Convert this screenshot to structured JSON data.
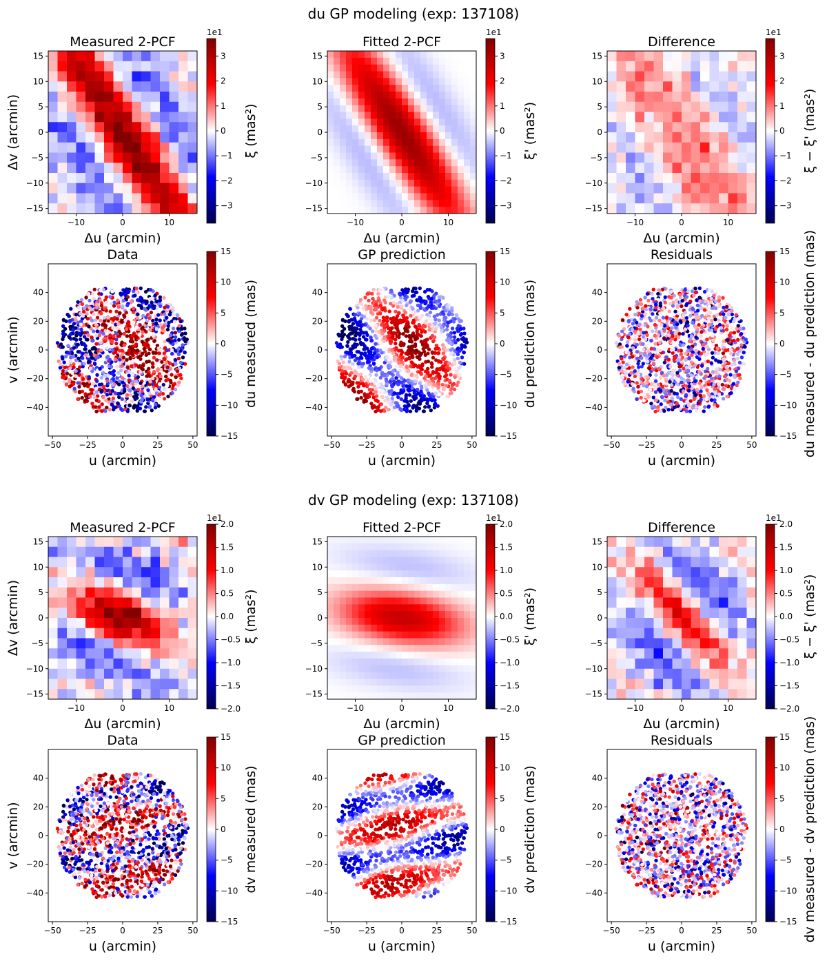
{
  "figure": {
    "du_title": "du GP modeling (exp: 137108)",
    "dv_title": "dv GP modeling (exp: 137108)",
    "offset_text": "1e1"
  },
  "colors": {
    "cmap_low": "#00004d",
    "cmap_mid_low": "#0000ff",
    "cmap_mid": "#ffffff",
    "cmap_mid_high": "#ff0000",
    "cmap_high": "#800000"
  },
  "chart_data": [
    {
      "id": "du-measured-2pcf",
      "type": "heatmap",
      "title": "Measured 2-PCF",
      "xlabel": "Δu (arcmin)",
      "ylabel": "Δv (arcmin)",
      "cbar_label": "ξ (mas²)",
      "xlim": [
        -16,
        16
      ],
      "ylim": [
        -16,
        16
      ],
      "xticks": [
        -10,
        0,
        10
      ],
      "yticks": [
        -15,
        -10,
        -5,
        0,
        5,
        10,
        15
      ],
      "cbar_range": [
        -3.7,
        3.7
      ],
      "cbar_ticks": [
        -3,
        -2,
        -1,
        0,
        1,
        2,
        3
      ],
      "cbar_offset": "1e1",
      "grid_size": 16,
      "model": {
        "kind": "stripe",
        "amp": 3.6,
        "sigma_along": 22,
        "sigma_across": 3.2,
        "angle_deg": -55,
        "neg_amp": 1.1,
        "neg_offset": 10
      },
      "noise": 0.35
    },
    {
      "id": "du-fitted-2pcf",
      "type": "heatmap",
      "title": "Fitted 2-PCF",
      "xlabel": "Δu (arcmin)",
      "ylabel": "",
      "cbar_label": "ξ' (mas²)",
      "xlim": [
        -16,
        16
      ],
      "ylim": [
        -16,
        16
      ],
      "xticks": [
        -10,
        0,
        10
      ],
      "yticks": [
        -15,
        -10,
        -5,
        0,
        5,
        10,
        15
      ],
      "cbar_range": [
        -3.7,
        3.7
      ],
      "cbar_ticks": [
        -3,
        -2,
        -1,
        0,
        1,
        2,
        3
      ],
      "cbar_offset": "1e1",
      "grid_size": 24,
      "model": {
        "kind": "stripe",
        "amp": 3.3,
        "sigma_along": 16,
        "sigma_across": 3.4,
        "angle_deg": -55,
        "neg_amp": 0.55,
        "neg_offset": 9
      },
      "noise": 0
    },
    {
      "id": "du-difference",
      "type": "heatmap",
      "title": "Difference",
      "xlabel": "Δu (arcmin)",
      "ylabel": "",
      "cbar_label": "ξ − ξ' (mas²)",
      "xlim": [
        -16,
        16
      ],
      "ylim": [
        -16,
        16
      ],
      "xticks": [
        -10,
        0,
        10
      ],
      "yticks": [
        -15,
        -10,
        -5,
        0,
        5,
        10,
        15
      ],
      "cbar_range": [
        -3.7,
        3.7
      ],
      "cbar_ticks": [
        -3,
        -2,
        -1,
        0,
        1,
        2,
        3
      ],
      "cbar_offset": "1e1",
      "grid_size": 16,
      "model": {
        "kind": "stripe",
        "amp": 1.0,
        "sigma_along": 30,
        "sigma_across": 5,
        "angle_deg": -55,
        "neg_amp": 0.5,
        "neg_offset": 11
      },
      "noise": 0.3
    },
    {
      "id": "du-data",
      "type": "scatter",
      "title": "Data",
      "xlabel": "u (arcmin)",
      "ylabel": "v (arcmin)",
      "cbar_label": "du measured (mas)",
      "xlim": [
        -53,
        53
      ],
      "ylim": [
        -60,
        60
      ],
      "xticks": [
        -50,
        -25,
        0,
        25,
        50
      ],
      "yticks": [
        -40,
        -20,
        0,
        20,
        40
      ],
      "cbar_range": [
        -15,
        15
      ],
      "cbar_ticks": [
        -15,
        -10,
        -5,
        0,
        5,
        10,
        15
      ],
      "n_points": 1300,
      "field_radius": 47,
      "vertical_extent": 43,
      "seed": 7,
      "field": {
        "kind": "du",
        "scale": 9,
        "noise": 7
      }
    },
    {
      "id": "du-gp-prediction",
      "type": "scatter",
      "title": "GP prediction",
      "xlabel": "u (arcmin)",
      "ylabel": "",
      "cbar_label": "du prediction (mas)",
      "xlim": [
        -53,
        53
      ],
      "ylim": [
        -60,
        60
      ],
      "xticks": [
        -50,
        -25,
        0,
        25,
        50
      ],
      "yticks": [
        -40,
        -20,
        0,
        20,
        40
      ],
      "cbar_range": [
        -15,
        15
      ],
      "cbar_ticks": [
        -15,
        -10,
        -5,
        0,
        5,
        10,
        15
      ],
      "n_points": 1300,
      "field_radius": 47,
      "vertical_extent": 43,
      "seed": 7,
      "field": {
        "kind": "du",
        "scale": 10,
        "noise": 0.8
      }
    },
    {
      "id": "du-residuals",
      "type": "scatter",
      "title": "Residuals",
      "xlabel": "u (arcmin)",
      "ylabel": "",
      "cbar_label": "du measured - du prediction (mas)",
      "xlim": [
        -53,
        53
      ],
      "ylim": [
        -60,
        60
      ],
      "xticks": [
        -50,
        -25,
        0,
        25,
        50
      ],
      "yticks": [
        -40,
        -20,
        0,
        20,
        40
      ],
      "cbar_range": [
        -15,
        15
      ],
      "cbar_ticks": [
        -15,
        -10,
        -5,
        0,
        5,
        10,
        15
      ],
      "n_points": 1300,
      "field_radius": 47,
      "vertical_extent": 43,
      "seed": 7,
      "field": {
        "kind": "noise",
        "scale": 0,
        "noise": 6
      }
    },
    {
      "id": "dv-measured-2pcf",
      "type": "heatmap",
      "title": "Measured 2-PCF",
      "xlabel": "Δu (arcmin)",
      "ylabel": "Δv (arcmin)",
      "cbar_label": "ξ (mas²)",
      "xlim": [
        -16,
        16
      ],
      "ylim": [
        -16,
        16
      ],
      "xticks": [
        -10,
        0,
        10
      ],
      "yticks": [
        -15,
        -10,
        -5,
        0,
        5,
        10,
        15
      ],
      "cbar_range": [
        -2.0,
        2.0
      ],
      "cbar_ticks": [
        -2.0,
        -1.5,
        -1.0,
        -0.5,
        0.0,
        0.5,
        1.0,
        1.5,
        2.0
      ],
      "cbar_offset": "1e1",
      "grid_size": 16,
      "model": {
        "kind": "stripe",
        "amp": 1.9,
        "sigma_along": 7,
        "sigma_across": 3.2,
        "angle_deg": -22,
        "neg_amp": 0.7,
        "neg_offset": 9
      },
      "noise": 0.22
    },
    {
      "id": "dv-fitted-2pcf",
      "type": "heatmap",
      "title": "Fitted 2-PCF",
      "xlabel": "Δu (arcmin)",
      "ylabel": "",
      "cbar_label": "ξ' (mas²)",
      "xlim": [
        -16,
        16
      ],
      "ylim": [
        -16,
        16
      ],
      "xticks": [
        -10,
        0,
        10
      ],
      "yticks": [
        -15,
        -10,
        -5,
        0,
        5,
        10,
        15
      ],
      "cbar_range": [
        -2.0,
        2.0
      ],
      "cbar_ticks": [
        -2.0,
        -1.5,
        -1.0,
        -0.5,
        0.0,
        0.5,
        1.0,
        1.5,
        2.0
      ],
      "cbar_offset": "1e1",
      "grid_size": 24,
      "model": {
        "kind": "stripe",
        "amp": 1.45,
        "sigma_along": 9,
        "sigma_across": 3.4,
        "angle_deg": -8,
        "neg_amp": 0.25,
        "neg_offset": 10
      },
      "noise": 0
    },
    {
      "id": "dv-difference",
      "type": "heatmap",
      "title": "Difference",
      "xlabel": "Δu (arcmin)",
      "ylabel": "",
      "cbar_label": "ξ − ξ' (mas²)",
      "xlim": [
        -16,
        16
      ],
      "ylim": [
        -16,
        16
      ],
      "xticks": [
        -10,
        0,
        10
      ],
      "yticks": [
        -15,
        -10,
        -5,
        0,
        5,
        10,
        15
      ],
      "cbar_range": [
        -2.0,
        2.0
      ],
      "cbar_ticks": [
        -2.0,
        -1.5,
        -1.0,
        -0.5,
        0.0,
        0.5,
        1.0,
        1.5,
        2.0
      ],
      "cbar_offset": "1e1",
      "grid_size": 16,
      "model": {
        "kind": "stripe",
        "amp": 1.1,
        "sigma_along": 10,
        "sigma_across": 2.6,
        "angle_deg": -45,
        "neg_amp": 0.6,
        "neg_offset": 8
      },
      "noise": 0.18
    },
    {
      "id": "dv-data",
      "type": "scatter",
      "title": "Data",
      "xlabel": "u (arcmin)",
      "ylabel": "v (arcmin)",
      "cbar_label": "dv measured (mas)",
      "xlim": [
        -53,
        53
      ],
      "ylim": [
        -60,
        60
      ],
      "xticks": [
        -50,
        -25,
        0,
        25,
        50
      ],
      "yticks": [
        -40,
        -20,
        0,
        20,
        40
      ],
      "cbar_range": [
        -15,
        15
      ],
      "cbar_ticks": [
        -15,
        -10,
        -5,
        0,
        5,
        10,
        15
      ],
      "n_points": 1300,
      "field_radius": 47,
      "vertical_extent": 43,
      "seed": 7,
      "field": {
        "kind": "dv",
        "scale": 8,
        "noise": 7
      }
    },
    {
      "id": "dv-gp-prediction",
      "type": "scatter",
      "title": "GP prediction",
      "xlabel": "u (arcmin)",
      "ylabel": "",
      "cbar_label": "dv prediction (mas)",
      "xlim": [
        -53,
        53
      ],
      "ylim": [
        -60,
        60
      ],
      "xticks": [
        -50,
        -25,
        0,
        25,
        50
      ],
      "yticks": [
        -40,
        -20,
        0,
        20,
        40
      ],
      "cbar_range": [
        -15,
        15
      ],
      "cbar_ticks": [
        -15,
        -10,
        -5,
        0,
        5,
        10,
        15
      ],
      "n_points": 1300,
      "field_radius": 47,
      "vertical_extent": 43,
      "seed": 7,
      "field": {
        "kind": "dv",
        "scale": 8.5,
        "noise": 0.8
      }
    },
    {
      "id": "dv-residuals",
      "type": "scatter",
      "title": "Residuals",
      "xlabel": "u (arcmin)",
      "ylabel": "",
      "cbar_label": "dv measured - dv prediction (mas)",
      "xlim": [
        -53,
        53
      ],
      "ylim": [
        -60,
        60
      ],
      "xticks": [
        -50,
        -25,
        0,
        25,
        50
      ],
      "yticks": [
        -40,
        -20,
        0,
        20,
        40
      ],
      "cbar_range": [
        -15,
        15
      ],
      "cbar_ticks": [
        -15,
        -10,
        -5,
        0,
        5,
        10,
        15
      ],
      "n_points": 1300,
      "field_radius": 47,
      "vertical_extent": 43,
      "seed": 7,
      "field": {
        "kind": "noise",
        "scale": 0,
        "noise": 6
      }
    }
  ]
}
